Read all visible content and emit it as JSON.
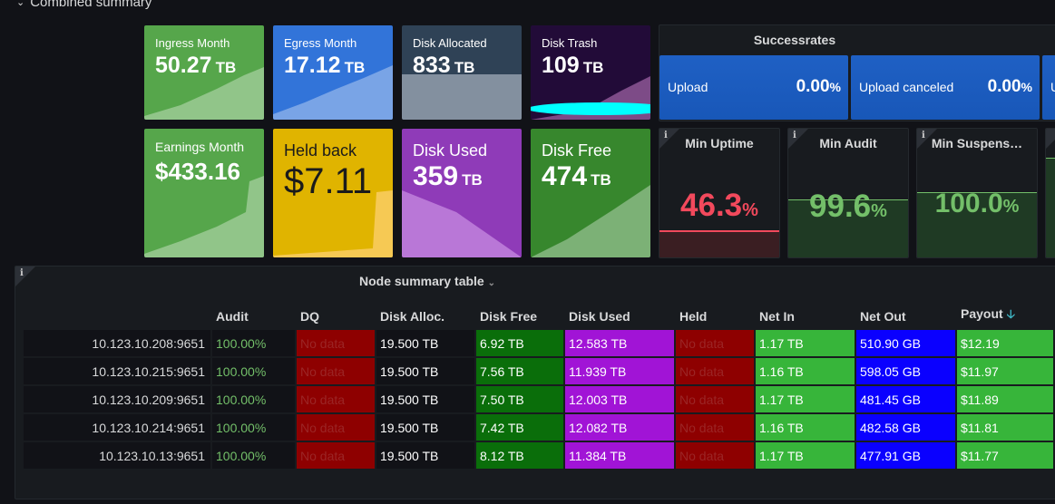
{
  "row": {
    "title": "Combined summary"
  },
  "stats": [
    {
      "title": "Ingress Month",
      "value": "50.27",
      "unit": "TB",
      "color": "#56a64b"
    },
    {
      "title": "Egress Month",
      "value": "17.12",
      "unit": "TB",
      "color": "#3274d9"
    },
    {
      "title": "Disk Allocated",
      "value": "833",
      "unit": "TB",
      "color": "#2f4256"
    },
    {
      "title": "Disk Trash",
      "value": "109",
      "unit": "TB",
      "color": "#220b38"
    },
    {
      "title": "Earnings Month",
      "value": "$433.16",
      "unit": "",
      "color": "#56a64b"
    },
    {
      "title": "Held back",
      "value": "$7.11",
      "unit": "",
      "color": "#e0b400"
    },
    {
      "title": "Disk Used",
      "value": "359",
      "unit": "TB",
      "color": "#8f3bb8"
    },
    {
      "title": "Disk Free",
      "value": "474",
      "unit": "TB",
      "color": "#37872d"
    }
  ],
  "successrates": {
    "title": "Successrates",
    "cards": [
      {
        "label": "Upload",
        "value": "0.00",
        "unit": "%"
      },
      {
        "label": "Upload canceled",
        "value": "0.00",
        "unit": "%"
      },
      {
        "label": "U",
        "value": "",
        "unit": ""
      }
    ]
  },
  "gauges": [
    {
      "title": "Min Uptime",
      "value": "46.3",
      "unit": "%",
      "color": "#f2495c",
      "level": 0.463
    },
    {
      "title": "Min Audit",
      "value": "99.6",
      "unit": "%",
      "color": "#73bf69",
      "level": 0.996
    },
    {
      "title": "Min Suspens…",
      "value": "100.0",
      "unit": "%",
      "color": "#73bf69",
      "level": 1.0
    }
  ],
  "table": {
    "title": "Node summary table",
    "columns": [
      "",
      "Audit",
      "DQ",
      "Disk Alloc.",
      "Disk Free",
      "Disk Used",
      "Held",
      "Net In",
      "Net Out",
      "Payout"
    ],
    "rows": [
      [
        "10.123.10.208:9651",
        "100.00%",
        "No data",
        "19.500 TB",
        "6.92 TB",
        "12.583 TB",
        "No data",
        "1.17 TB",
        "510.90 GB",
        "$12.19"
      ],
      [
        "10.123.10.215:9651",
        "100.00%",
        "No data",
        "19.500 TB",
        "7.56 TB",
        "11.939 TB",
        "No data",
        "1.16 TB",
        "598.05 GB",
        "$11.97"
      ],
      [
        "10.123.10.209:9651",
        "100.00%",
        "No data",
        "19.500 TB",
        "7.50 TB",
        "12.003 TB",
        "No data",
        "1.17 TB",
        "481.45 GB",
        "$11.89"
      ],
      [
        "10.123.10.214:9651",
        "100.00%",
        "No data",
        "19.500 TB",
        "7.42 TB",
        "12.082 TB",
        "No data",
        "1.16 TB",
        "482.58 GB",
        "$11.81"
      ],
      [
        "10.123.10.13:9651",
        "100.00%",
        "No data",
        "19.500 TB",
        "8.12 TB",
        "11.384 TB",
        "No data",
        "1.17 TB",
        "477.91 GB",
        "$11.77"
      ]
    ]
  }
}
